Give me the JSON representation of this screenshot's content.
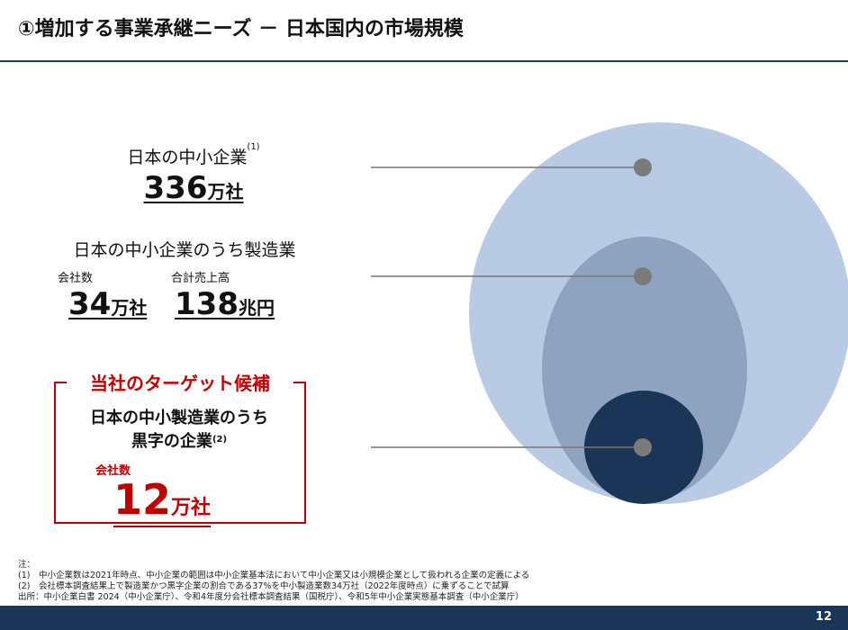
{
  "title": "①増加する事業承継ニーズ － 日本国内の市場規模",
  "page_number": "12",
  "tier1": {
    "label": "日本の中小企業",
    "note_ref": "(1)",
    "value": "336",
    "unit": "万社"
  },
  "tier2": {
    "label": "日本の中小企業のうち製造業",
    "companies_label": "会社数",
    "companies_value": "34",
    "companies_unit": "万社",
    "sales_label": "合計売上高",
    "sales_value": "138",
    "sales_unit": "兆円"
  },
  "tier3": {
    "title": "当社のターゲット候補",
    "label_line1": "日本の中小製造業のうち",
    "label_line2": "黒字の企業",
    "note_ref": "(2)",
    "companies_label": "会社数",
    "value": "12",
    "unit": "万社"
  },
  "notes": {
    "heading": "注：",
    "n1": "(1)　中小企業数は2021年時点、中小企業の範囲は中小企業基本法において中小企業又は小規模企業として扱われる企業の定義による",
    "n2": "(2)　会社標本調査結果上で製造業かつ黒字企業の割合である37%を中小製造業数34万社（2022年度時点）に乗ずることで試算",
    "source": "出所：中小企業白書 2024（中小企業庁）、令和4年度分会社標本調査結果（国税庁）、令和5年中小企業実態基本調査（中小企業庁）"
  },
  "colors": {
    "outer": "#b9cbe4",
    "middle": "#8ea3bf",
    "inner": "#1b3557",
    "accent": "#c00000"
  }
}
